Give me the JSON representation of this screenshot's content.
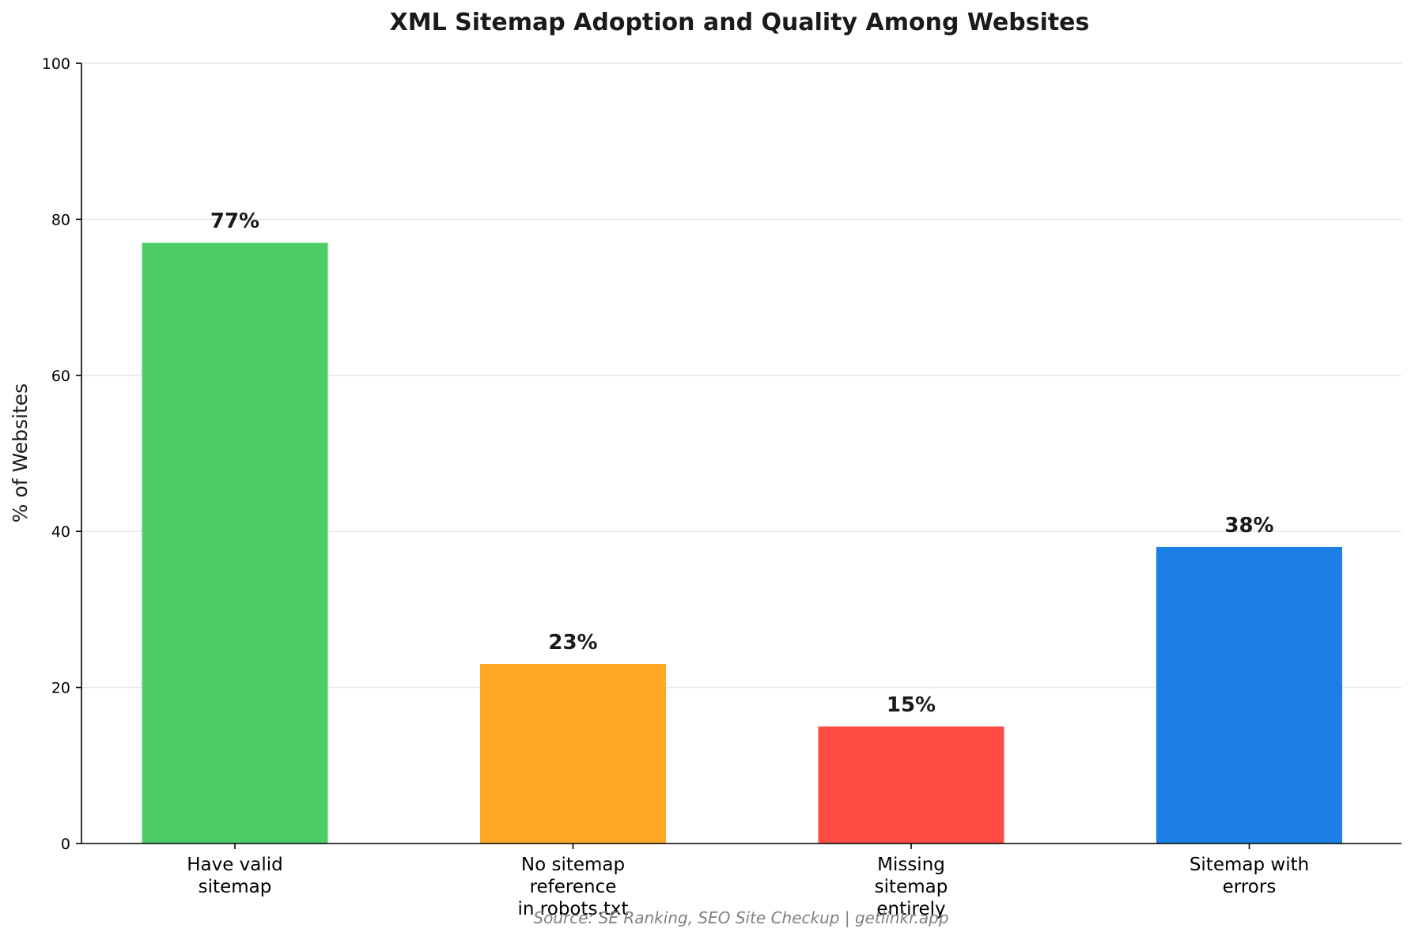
{
  "chart_data": {
    "type": "bar",
    "title": "XML Sitemap Adoption and Quality Among Websites",
    "ylabel": "% of Websites",
    "xlabel": "",
    "ylim": [
      0,
      100
    ],
    "yticks": [
      0,
      20,
      40,
      60,
      80,
      100
    ],
    "grid": "horizontal",
    "categories": [
      [
        "Have valid",
        "sitemap"
      ],
      [
        "No sitemap",
        "reference",
        "in robots.txt"
      ],
      [
        "Missing",
        "sitemap",
        "entirely"
      ],
      [
        "Sitemap with",
        "errors"
      ]
    ],
    "values": [
      77,
      23,
      15,
      38
    ],
    "value_labels": [
      "77%",
      "23%",
      "15%",
      "38%"
    ],
    "colors": [
      "#4ccd68",
      "#ffa726",
      "#ff4d45",
      "#1b7fe3"
    ]
  },
  "footer": {
    "source": "Source: SE Ranking, SEO Site Checkup | getlinkr.app"
  }
}
